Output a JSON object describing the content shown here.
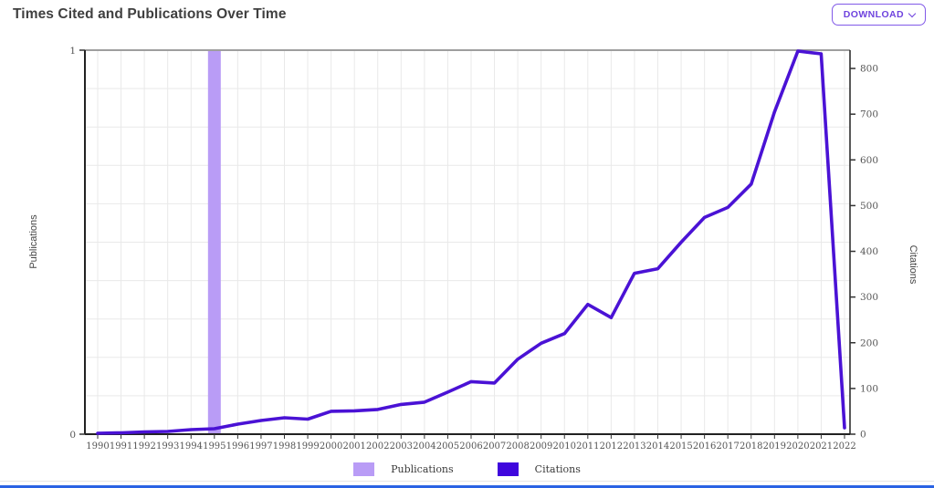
{
  "header": {
    "title": "Times Cited and Publications Over Time",
    "download_label": "DOWNLOAD"
  },
  "legend": {
    "items": [
      {
        "label": "Publications",
        "color": "#b99cf6"
      },
      {
        "label": "Citations",
        "color": "#3f06dd"
      }
    ]
  },
  "chart_data": {
    "type": "line",
    "title": "Times Cited and Publications Over Time",
    "x": [
      1990,
      1991,
      1992,
      1993,
      1994,
      1995,
      1996,
      1997,
      1998,
      1999,
      2000,
      2001,
      2002,
      2003,
      2004,
      2005,
      2006,
      2007,
      2008,
      2009,
      2010,
      2011,
      2012,
      2013,
      2014,
      2015,
      2016,
      2017,
      2018,
      2019,
      2020,
      2021,
      2022
    ],
    "series": [
      {
        "name": "Publications",
        "type": "bar",
        "axis": "left",
        "color": "#b99cf6",
        "values": [
          0,
          0,
          0,
          0,
          0,
          1,
          0,
          0,
          0,
          0,
          0,
          0,
          0,
          0,
          0,
          0,
          0,
          0,
          0,
          0,
          0,
          0,
          0,
          0,
          0,
          0,
          0,
          0,
          0,
          0,
          0,
          0,
          0
        ]
      },
      {
        "name": "Citations",
        "type": "line",
        "axis": "right",
        "color": "#4a12d5",
        "values": [
          2,
          3,
          5,
          6,
          10,
          12,
          22,
          30,
          36,
          33,
          50,
          51,
          54,
          65,
          70,
          92,
          115,
          112,
          164,
          199,
          220,
          284,
          255,
          352,
          362,
          420,
          474,
          496,
          547,
          705,
          838,
          832,
          14
        ]
      }
    ],
    "left_axis": {
      "label": "Publications",
      "ticks": [
        0,
        1
      ],
      "range": [
        0,
        1
      ]
    },
    "right_axis": {
      "label": "Citations",
      "ticks": [
        0,
        100,
        200,
        300,
        400,
        500,
        600,
        700,
        800
      ],
      "range": [
        0,
        840
      ]
    },
    "grid": true,
    "legend_position": "bottom",
    "colors": {
      "grid_line": "#e9e9e9",
      "axis_line": "#222222",
      "top_border": "#9e9e9e",
      "tick_text": "#555555",
      "axis_label_text": "#444444"
    }
  }
}
